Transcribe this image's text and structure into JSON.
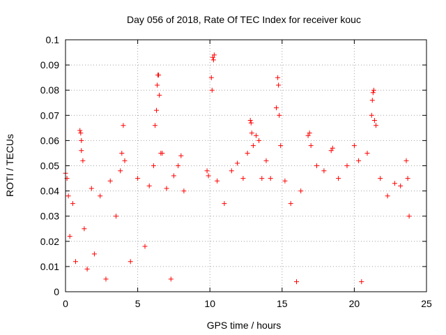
{
  "chart_data": {
    "type": "scatter",
    "title": "Day 056 of 2018, Rate Of TEC Index for receiver kouc",
    "xlabel": "GPS time / hours",
    "ylabel": "ROTI / TECUs",
    "xlim": [
      0,
      25
    ],
    "ylim": [
      0,
      0.1
    ],
    "xticks": [
      0,
      5,
      10,
      15,
      20,
      25
    ],
    "xtick_labels": [
      "0",
      "5",
      "10",
      "15",
      "20",
      "25"
    ],
    "yticks": [
      0,
      0.01,
      0.02,
      0.03,
      0.04,
      0.05,
      0.06,
      0.07,
      0.08,
      0.09,
      0.1
    ],
    "ytick_labels": [
      "0",
      "0.01",
      "0.02",
      "0.03",
      "0.04",
      "0.05",
      "0.06",
      "0.07",
      "0.08",
      "0.09",
      "0.1"
    ],
    "grid": true,
    "legend": "none",
    "marker": "plus",
    "color": "#ff0000",
    "data_gap_hours": [
      8.3,
      9.7
    ],
    "series": [
      {
        "values_xy": [
          [
            0.0,
            0.047
          ],
          [
            0.1,
            0.045
          ],
          [
            0.2,
            0.038
          ],
          [
            0.3,
            0.022
          ],
          [
            0.5,
            0.035
          ],
          [
            0.7,
            0.012
          ],
          [
            1.0,
            0.064
          ],
          [
            1.05,
            0.063
          ],
          [
            1.1,
            0.06
          ],
          [
            1.1,
            0.056
          ],
          [
            1.2,
            0.052
          ],
          [
            1.3,
            0.025
          ],
          [
            1.5,
            0.009
          ],
          [
            1.8,
            0.041
          ],
          [
            2.0,
            0.015
          ],
          [
            2.4,
            0.038
          ],
          [
            2.8,
            0.005
          ],
          [
            3.1,
            0.044
          ],
          [
            3.5,
            0.03
          ],
          [
            3.8,
            0.048
          ],
          [
            3.9,
            0.055
          ],
          [
            4.0,
            0.066
          ],
          [
            4.1,
            0.052
          ],
          [
            4.5,
            0.012
          ],
          [
            5.0,
            0.045
          ],
          [
            5.5,
            0.018
          ],
          [
            5.8,
            0.042
          ],
          [
            6.1,
            0.05
          ],
          [
            6.2,
            0.066
          ],
          [
            6.3,
            0.072
          ],
          [
            6.35,
            0.082
          ],
          [
            6.4,
            0.086
          ],
          [
            6.45,
            0.086
          ],
          [
            6.5,
            0.078
          ],
          [
            6.6,
            0.055
          ],
          [
            6.7,
            0.055
          ],
          [
            7.0,
            0.041
          ],
          [
            7.3,
            0.005
          ],
          [
            7.5,
            0.046
          ],
          [
            7.8,
            0.05
          ],
          [
            8.0,
            0.054
          ],
          [
            8.2,
            0.04
          ],
          [
            9.8,
            0.048
          ],
          [
            9.9,
            0.046
          ],
          [
            10.1,
            0.085
          ],
          [
            10.15,
            0.08
          ],
          [
            10.2,
            0.093
          ],
          [
            10.25,
            0.092
          ],
          [
            10.3,
            0.094
          ],
          [
            10.5,
            0.044
          ],
          [
            11.0,
            0.035
          ],
          [
            11.5,
            0.048
          ],
          [
            11.9,
            0.051
          ],
          [
            12.3,
            0.045
          ],
          [
            12.6,
            0.055
          ],
          [
            12.8,
            0.068
          ],
          [
            12.85,
            0.067
          ],
          [
            12.9,
            0.063
          ],
          [
            13.0,
            0.058
          ],
          [
            13.2,
            0.062
          ],
          [
            13.4,
            0.06
          ],
          [
            13.6,
            0.045
          ],
          [
            13.9,
            0.052
          ],
          [
            14.2,
            0.045
          ],
          [
            14.6,
            0.073
          ],
          [
            14.7,
            0.085
          ],
          [
            14.75,
            0.082
          ],
          [
            14.8,
            0.07
          ],
          [
            14.9,
            0.058
          ],
          [
            15.2,
            0.044
          ],
          [
            15.6,
            0.035
          ],
          [
            16.0,
            0.004
          ],
          [
            16.3,
            0.04
          ],
          [
            16.8,
            0.062
          ],
          [
            16.9,
            0.063
          ],
          [
            17.0,
            0.058
          ],
          [
            17.4,
            0.05
          ],
          [
            17.9,
            0.048
          ],
          [
            18.4,
            0.056
          ],
          [
            18.5,
            0.057
          ],
          [
            18.9,
            0.045
          ],
          [
            19.5,
            0.05
          ],
          [
            20.0,
            0.058
          ],
          [
            20.3,
            0.052
          ],
          [
            20.5,
            0.004
          ],
          [
            20.9,
            0.055
          ],
          [
            21.2,
            0.07
          ],
          [
            21.25,
            0.076
          ],
          [
            21.3,
            0.079
          ],
          [
            21.35,
            0.08
          ],
          [
            21.4,
            0.068
          ],
          [
            21.5,
            0.066
          ],
          [
            21.8,
            0.045
          ],
          [
            22.3,
            0.038
          ],
          [
            22.8,
            0.043
          ],
          [
            23.2,
            0.042
          ],
          [
            23.6,
            0.052
          ],
          [
            23.7,
            0.045
          ],
          [
            23.8,
            0.03
          ]
        ]
      }
    ]
  }
}
